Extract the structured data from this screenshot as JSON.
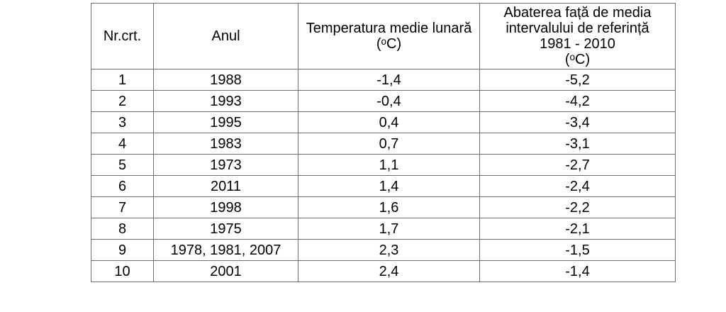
{
  "page": {
    "background_color": "#ffffff",
    "text_color": "#000000",
    "table_border_color": "#6e6e6e"
  },
  "table": {
    "headers": {
      "nr": "Nr.crt.",
      "anul": "Anul",
      "temp": "Temperatura medie lunară\n(ᵒC)",
      "abatere": "Abaterea față de media\nintervalului de referință\n1981 - 2010\n(ᵒC)"
    },
    "rows": [
      {
        "nr": "1",
        "anul": "1988",
        "temp": "-1,4",
        "abatere": "-5,2"
      },
      {
        "nr": "2",
        "anul": "1993",
        "temp": "-0,4",
        "abatere": "-4,2"
      },
      {
        "nr": "3",
        "anul": "1995",
        "temp": "0,4",
        "abatere": "-3,4"
      },
      {
        "nr": "4",
        "anul": "1983",
        "temp": "0,7",
        "abatere": "-3,1"
      },
      {
        "nr": "5",
        "anul": "1973",
        "temp": "1,1",
        "abatere": "-2,7"
      },
      {
        "nr": "6",
        "anul": "2011",
        "temp": "1,4",
        "abatere": "-2,4"
      },
      {
        "nr": "7",
        "anul": "1998",
        "temp": "1,6",
        "abatere": "-2,2"
      },
      {
        "nr": "8",
        "anul": "1975",
        "temp": "1,7",
        "abatere": "-2,1"
      },
      {
        "nr": "9",
        "anul": "1978, 1981, 2007",
        "temp": "2,3",
        "abatere": "-1,5"
      },
      {
        "nr": "10",
        "anul": "2001",
        "temp": "2,4",
        "abatere": "-1,4"
      }
    ]
  }
}
